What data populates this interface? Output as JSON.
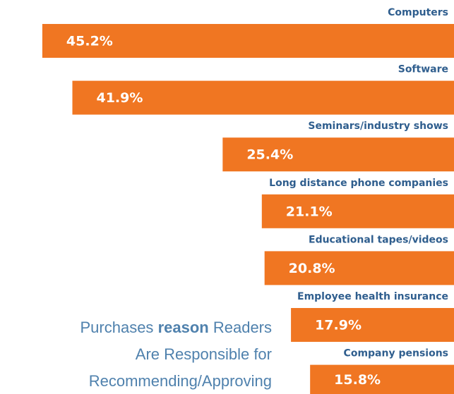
{
  "chart_data": {
    "type": "bar",
    "orientation": "horizontal",
    "title": [
      "Purchases",
      "reason",
      "Readers",
      "Are Responsible for",
      "Recommending/Approving"
    ],
    "categories": [
      "Computers",
      "Software",
      "Seminars/industry shows",
      "Long distance phone companies",
      "Educational tapes/videos",
      "Employee health insurance",
      "Company pensions"
    ],
    "values": [
      45.2,
      41.9,
      25.4,
      21.1,
      20.8,
      17.9,
      15.8
    ],
    "value_labels": [
      "45.2%",
      "41.9%",
      "25.4%",
      "21.1%",
      "20.8%",
      "17.9%",
      "15.8%"
    ],
    "color": "#f07622"
  }
}
